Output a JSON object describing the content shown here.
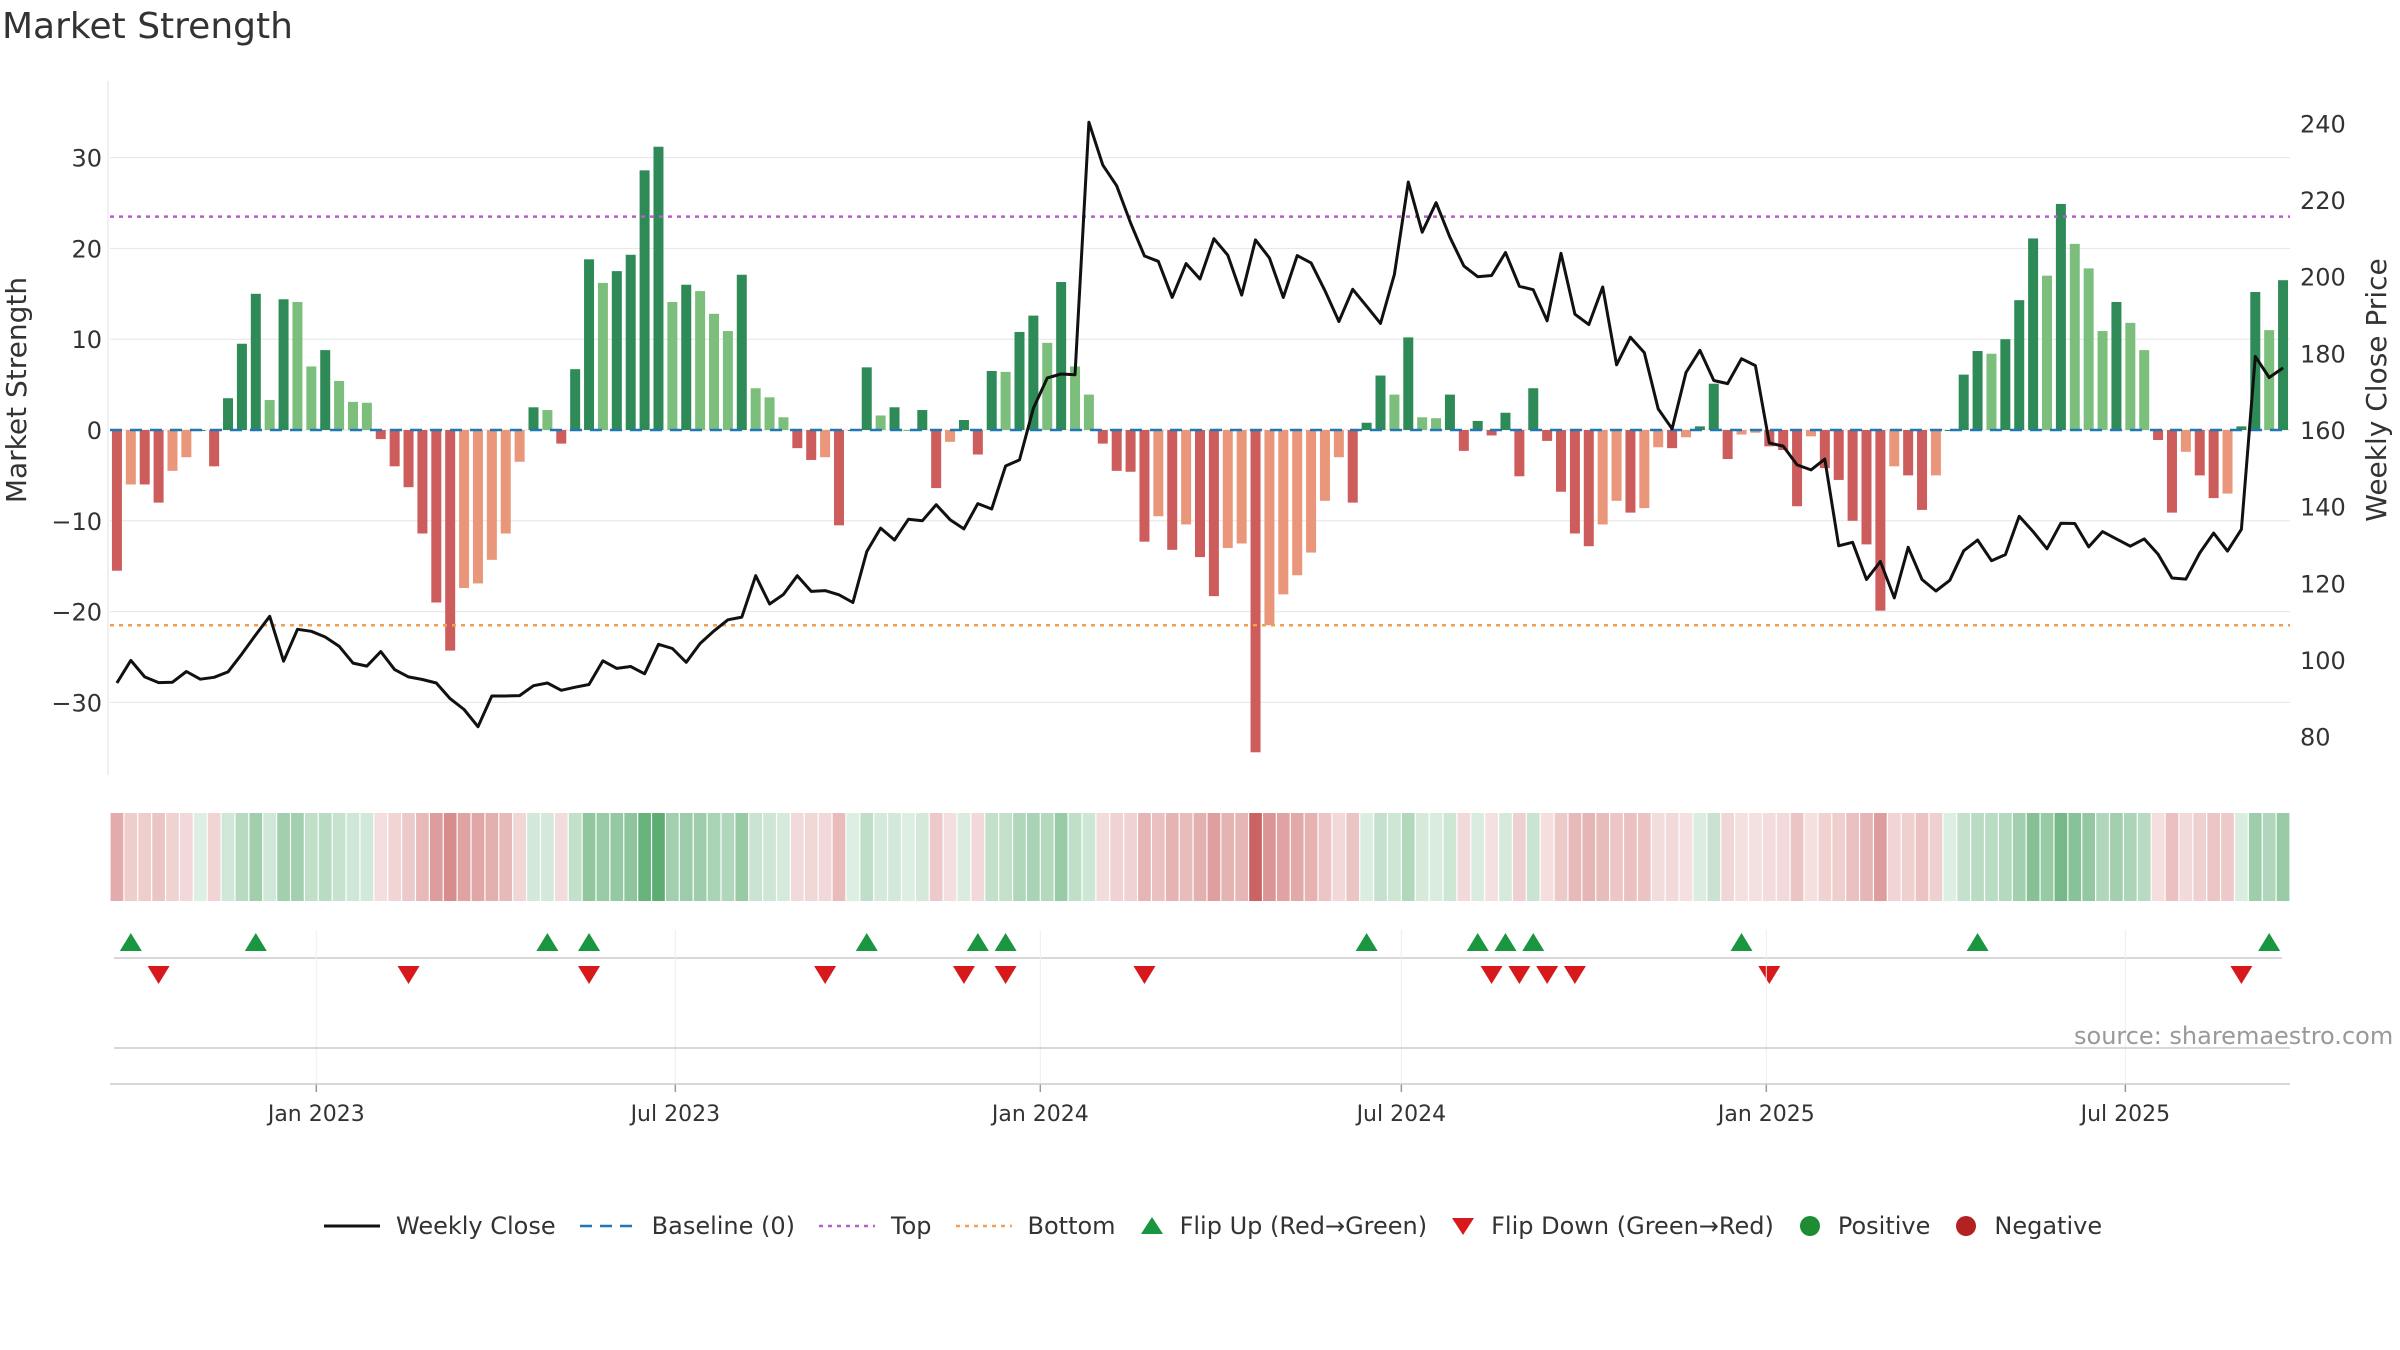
{
  "chart_data": {
    "type": "bar",
    "title": "Market Strength",
    "ylabel": "Market Strength",
    "y2label": "Weekly Close Price",
    "ylim": [
      -38,
      38
    ],
    "y2lim": [
      70,
      250
    ],
    "yticks": [
      30,
      20,
      10,
      0,
      -10,
      -20,
      -30
    ],
    "ytick_labels": [
      "30",
      "20",
      "10",
      "0",
      "−10",
      "−20",
      "−30"
    ],
    "y2ticks": [
      240,
      220,
      200,
      180,
      160,
      140,
      120,
      100,
      80
    ],
    "x_start": "2022-09-19",
    "x_end": "2025-09-22",
    "x_ticks": [
      {
        "date": "2023-01-01",
        "label": "Jan 2023"
      },
      {
        "date": "2023-07-01",
        "label": "Jul 2023"
      },
      {
        "date": "2024-01-01",
        "label": "Jan 2024"
      },
      {
        "date": "2024-07-01",
        "label": "Jul 2024"
      },
      {
        "date": "2025-01-01",
        "label": "Jan 2025"
      },
      {
        "date": "2025-07-01",
        "label": "Jul 2025"
      }
    ],
    "top_threshold": 23.5,
    "bottom_threshold": -21.5,
    "series": [
      {
        "name": "Market Strength",
        "values": [
          -15.5,
          -6,
          -6,
          -8,
          -4.5,
          -3,
          0,
          -4,
          3.5,
          9.5,
          15,
          3.3,
          14.4,
          14.1,
          7,
          8.8,
          5.4,
          3.1,
          3,
          -1,
          -4,
          -6.3,
          -11.4,
          -19,
          -24.3,
          -17.4,
          -16.9,
          -14.3,
          -11.4,
          -3.5,
          2.5,
          2.2,
          -1.5,
          6.7,
          18.8,
          16.2,
          17.5,
          19.3,
          28.6,
          31.2,
          14.1,
          16,
          15.3,
          12.8,
          10.9,
          17.1,
          4.6,
          3.6,
          1.4,
          -2,
          -3.3,
          -3,
          -10.5,
          0,
          6.9,
          1.6,
          2.5,
          0,
          2.2,
          -6.4,
          -1.3,
          1.1,
          -2.7,
          6.5,
          6.4,
          10.8,
          12.6,
          9.6,
          16.3,
          7,
          3.9,
          -1.5,
          -4.5,
          -4.6,
          -12.3,
          -9.5,
          -13.2,
          -10.4,
          -14,
          -18.3,
          -13,
          -12.5,
          -35.5,
          -21.5,
          -18.1,
          -16,
          -13.5,
          -7.8,
          -3,
          -8,
          0.8,
          6,
          3.9,
          10.2,
          1.4,
          1.3,
          3.9,
          -2.3,
          1,
          -0.6,
          1.9,
          -5.1,
          4.6,
          -1.2,
          -6.8,
          -11.4,
          -12.8,
          -10.4,
          -7.8,
          -9.1,
          -8.6,
          -1.9,
          -2,
          -0.8,
          0.4,
          5.1,
          -3.2,
          -0.5,
          -0.3,
          -1.8,
          -2.2,
          -8.4,
          -0.7,
          -4.2,
          -5.5,
          -10,
          -12.6,
          -19.9,
          -4,
          -5,
          -8.8,
          -5,
          0,
          6.1,
          8.7,
          8.4,
          10,
          14.3,
          21.1,
          17,
          24.9,
          20.5,
          17.8,
          10.9,
          14.1,
          11.8,
          8.8,
          -1.1,
          -9.1,
          -2.4,
          -5,
          -7.5,
          -7,
          0.4,
          15.2,
          11,
          16.5
        ]
      },
      {
        "name": "Weekly Close",
        "values": [
          94,
          99.9,
          95.6,
          94.1,
          94.2,
          97,
          95,
          95.5,
          96.9,
          101.6,
          106.6,
          111.4,
          99.7,
          108,
          107.5,
          106,
          103.6,
          99.2,
          98.4,
          102.2,
          97.5,
          95.6,
          94.9,
          94,
          89.9,
          87.1,
          82.6,
          90.6,
          90.6,
          90.7,
          93.3,
          94,
          92.1,
          92.9,
          93.6,
          99.8,
          97.8,
          98.3,
          96.4,
          104.1,
          103,
          99.4,
          104.3,
          107.6,
          110.5,
          111.2,
          122,
          114.6,
          117.1,
          122,
          117.9,
          118.1,
          117,
          115,
          128.3,
          134.4,
          131.3,
          136.7,
          136.3,
          140.5,
          136.6,
          134.2,
          140.8,
          139.4,
          150.6,
          152.2,
          165.7,
          173.6,
          174.6,
          174.4,
          240.3,
          229.1,
          223.7,
          214,
          205.4,
          204,
          194.6,
          203.4,
          199.4,
          209.9,
          205.6,
          195.2,
          209.6,
          204.9,
          194.6,
          205.5,
          203.6,
          196.3,
          188.3,
          196.7,
          192.3,
          187.8,
          200.6,
          224.7,
          211.6,
          219.3,
          210.3,
          202.8,
          200,
          200.3,
          206.3,
          197.5,
          196.6,
          188.5,
          206.1,
          190.2,
          187.5,
          197.3,
          177,
          184.2,
          180.2,
          165.5,
          160.3,
          175,
          180.8,
          172.9,
          172.1,
          178.6,
          176.8,
          156.6,
          155.8,
          150.9,
          149.6,
          152.4,
          129.8,
          130.7,
          121,
          125.7,
          116.2,
          129.4,
          121,
          118,
          120.8,
          128.5,
          131.3,
          125.9,
          127.5,
          137.5,
          133.5,
          129,
          135.7,
          135.6,
          129.5,
          133.5,
          131.6,
          129.7,
          131.6,
          127.6,
          121.4,
          121.1,
          127.9,
          133.1,
          128.4,
          134.1,
          179.2,
          173.7,
          176.2
        ]
      }
    ],
    "flip_up_indices": [
      1,
      10,
      31,
      34,
      54,
      62,
      64,
      90,
      98,
      100,
      102,
      117,
      134,
      155
    ],
    "flip_down_indices": [
      3,
      21,
      34,
      51,
      61,
      64,
      74,
      99,
      101,
      103,
      105,
      119,
      153
    ],
    "legend": [
      {
        "label": "Weekly Close",
        "kind": "line",
        "color": "#111111"
      },
      {
        "label": "Baseline (0)",
        "kind": "dash",
        "color": "#1f77b4"
      },
      {
        "label": "Top",
        "kind": "dot",
        "color": "#b360c9"
      },
      {
        "label": "Bottom",
        "kind": "dot",
        "color": "#f0a050"
      },
      {
        "label": "Flip Up (Red→Green)",
        "kind": "tri-up",
        "color": "#1a9641"
      },
      {
        "label": "Flip Down (Green→Red)",
        "kind": "tri-down",
        "color": "#d7191c"
      },
      {
        "label": "Positive",
        "kind": "circle",
        "color": "#1e8c32"
      },
      {
        "label": "Negative",
        "kind": "circle",
        "color": "#b22222"
      }
    ],
    "source": "source: sharemaestro.com"
  },
  "colors": {
    "pos_strong": "#2e8b57",
    "pos_light": "#7cbf7c",
    "neg_strong": "#cd5c5c",
    "neg_light": "#e9967a",
    "line": "#111111",
    "grid": "#e6e6e6"
  }
}
